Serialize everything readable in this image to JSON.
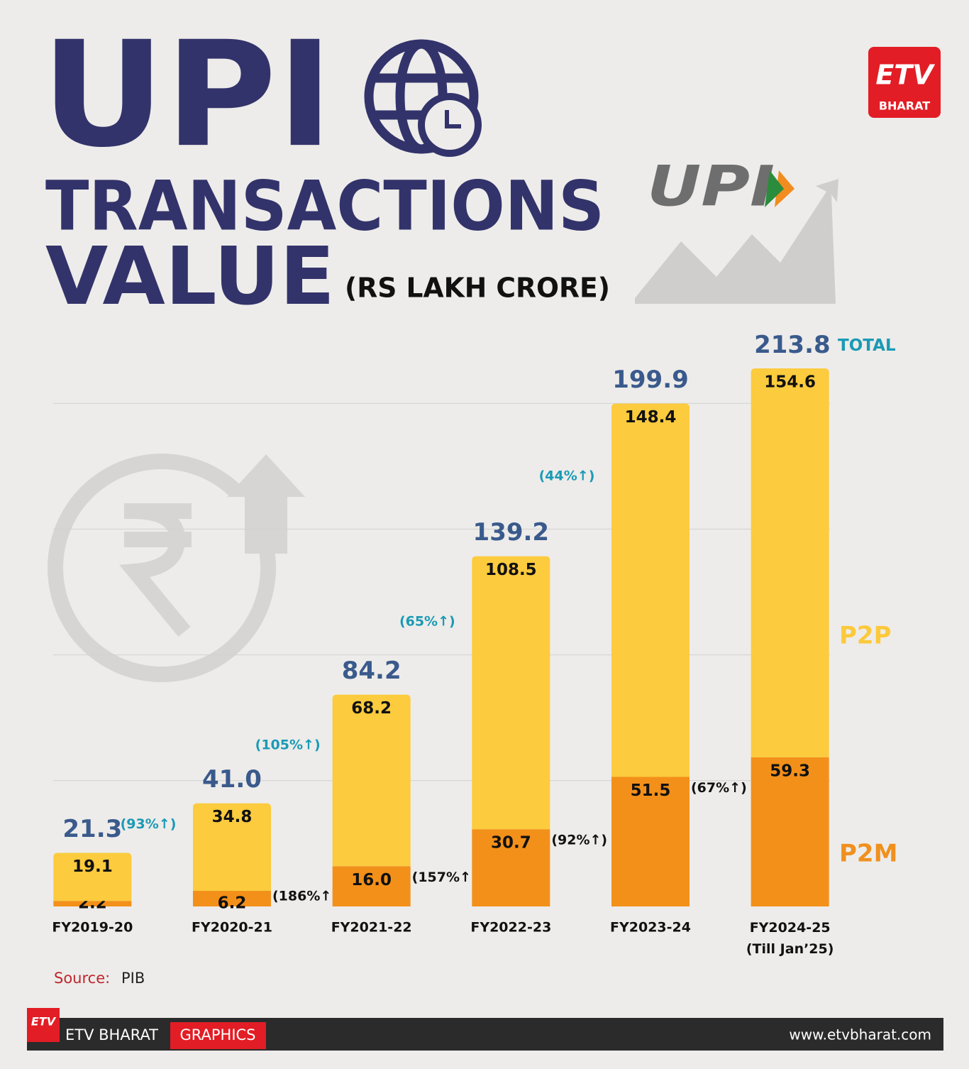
{
  "header": {
    "title_line1": "UPI",
    "title_line2": "TRANSACTIONS",
    "title_line3": "VALUE",
    "unit": "(RS LAKH CRORE)",
    "logo_text": "BHARAT",
    "upi_logo": "UPI"
  },
  "chart_data": {
    "type": "stacked-bar",
    "categories": [
      "FY2019-20",
      "FY2020-21",
      "FY2021-22",
      "FY2022-23",
      "FY2023-24",
      "FY2024-25\n(Till Jan’25)"
    ],
    "series": [
      {
        "name": "P2M",
        "color": "#f3901a",
        "label_color": "#f0901e",
        "values": [
          2.2,
          6.2,
          16.0,
          30.7,
          51.5,
          59.3
        ],
        "value_labels": [
          "2.2",
          "6.2",
          "16.0",
          "30.7",
          "51.5",
          "59.3"
        ],
        "growth_labels": [
          null,
          "(186%↑)",
          "(157%↑)",
          "(92%↑)",
          "(67%↑)",
          null
        ]
      },
      {
        "name": "P2P",
        "color": "#fccb3e",
        "label_color": "#fcc93a",
        "values": [
          19.1,
          34.8,
          68.2,
          108.5,
          148.4,
          154.6
        ],
        "value_labels": [
          "19.1",
          "34.8",
          "68.2",
          "108.5",
          "148.4",
          "154.6"
        ]
      }
    ],
    "totals": {
      "name": "TOTAL",
      "values": [
        21.3,
        41.0,
        84.2,
        139.2,
        199.9,
        213.8
      ],
      "value_labels": [
        "21.3",
        "41.0",
        "84.2",
        "139.2",
        "199.9",
        "213.8"
      ],
      "growth_labels": [
        "(93%↑)",
        "(105%↑)",
        "(65%↑)",
        "(44%↑)",
        null,
        null
      ]
    },
    "ylim": [
      0,
      220
    ],
    "yticks": [
      50,
      100,
      150,
      200
    ],
    "grid": true
  },
  "source": {
    "label": "Source:",
    "value": "PIB"
  },
  "footer": {
    "brand": "ETV BHARAT",
    "section": "GRAPHICS",
    "url": "www.etvbharat.com"
  }
}
